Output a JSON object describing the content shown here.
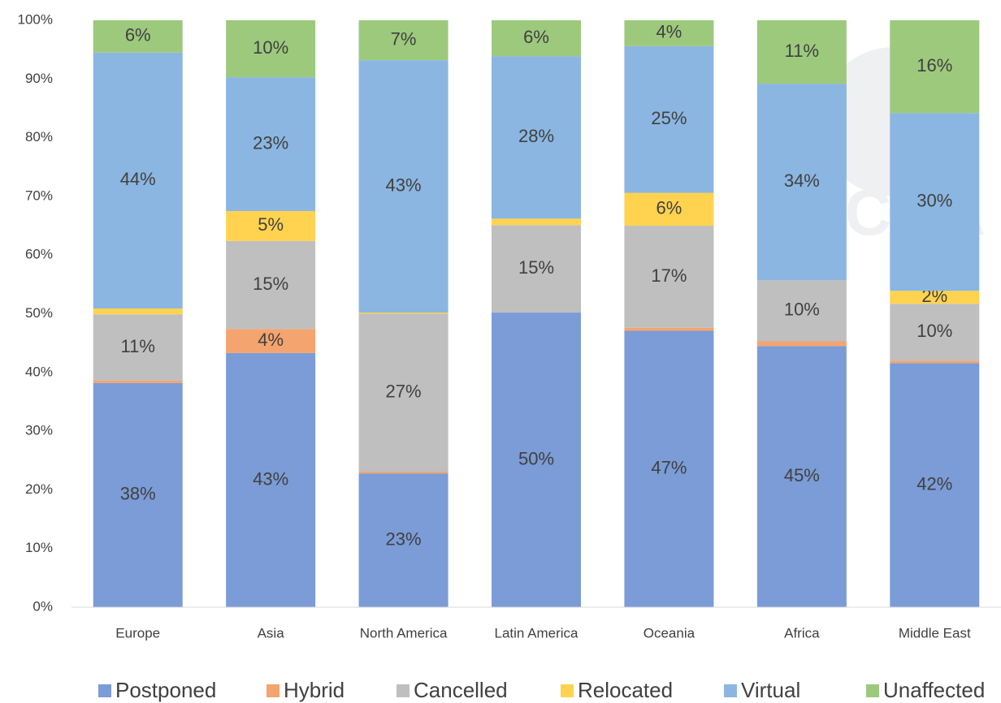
{
  "chart_data": {
    "type": "stacked_bar",
    "categories": [
      "Europe",
      "Asia",
      "North America",
      "Latin America",
      "Oceania",
      "Africa",
      "Middle East"
    ],
    "series": [
      {
        "name": "Postponed",
        "color": "#7b9cd6",
        "values": [
          38.2,
          43.3,
          22.8,
          50.2,
          47.1,
          44.5,
          41.6
        ],
        "value_labels": [
          "38%",
          "43%",
          "23%",
          "50%",
          "47%",
          "45%",
          "42%"
        ]
      },
      {
        "name": "Hybrid",
        "color": "#f4a46e",
        "values": [
          0.4,
          4.1,
          0.3,
          0,
          0.5,
          0.8,
          0.4
        ],
        "value_labels": [
          null,
          "4%",
          null,
          null,
          null,
          null,
          null
        ]
      },
      {
        "name": "Cancelled",
        "color": "#bfbfbf",
        "values": [
          11.3,
          15.0,
          26.9,
          14.9,
          17.4,
          10.4,
          9.7
        ],
        "value_labels": [
          "11%",
          "15%",
          "27%",
          "15%",
          "17%",
          "10%",
          "10%"
        ]
      },
      {
        "name": "Relocated",
        "color": "#ffd34f",
        "values": [
          1.0,
          5.1,
          0.2,
          1.1,
          5.6,
          0,
          2.2
        ],
        "value_labels": [
          null,
          "5%",
          null,
          null,
          "6%",
          null,
          "2%"
        ]
      },
      {
        "name": "Virtual",
        "color": "#8bb6e1",
        "values": [
          43.6,
          22.8,
          43.0,
          27.7,
          25.0,
          33.5,
          30.3
        ],
        "value_labels": [
          "44%",
          "23%",
          "43%",
          "28%",
          "25%",
          "34%",
          "30%"
        ]
      },
      {
        "name": "Unaffected",
        "color": "#9dc97d",
        "values": [
          5.5,
          9.7,
          6.8,
          6.1,
          4.4,
          10.8,
          15.8
        ],
        "value_labels": [
          "6%",
          "10%",
          "7%",
          "6%",
          "4%",
          "11%",
          "16%"
        ]
      }
    ],
    "ylim": [
      0,
      100
    ],
    "yticks": [
      {
        "value": 0,
        "label": "0%"
      },
      {
        "value": 10,
        "label": "10%"
      },
      {
        "value": 20,
        "label": "20%"
      },
      {
        "value": 30,
        "label": "30%"
      },
      {
        "value": 40,
        "label": "40%"
      },
      {
        "value": 50,
        "label": "50%"
      },
      {
        "value": 60,
        "label": "60%"
      },
      {
        "value": 70,
        "label": "70%"
      },
      {
        "value": 80,
        "label": "80%"
      },
      {
        "value": 90,
        "label": "90%"
      },
      {
        "value": 100,
        "label": "100%"
      }
    ],
    "grid": false,
    "legend": "bottom",
    "watermark": "ICCA"
  }
}
